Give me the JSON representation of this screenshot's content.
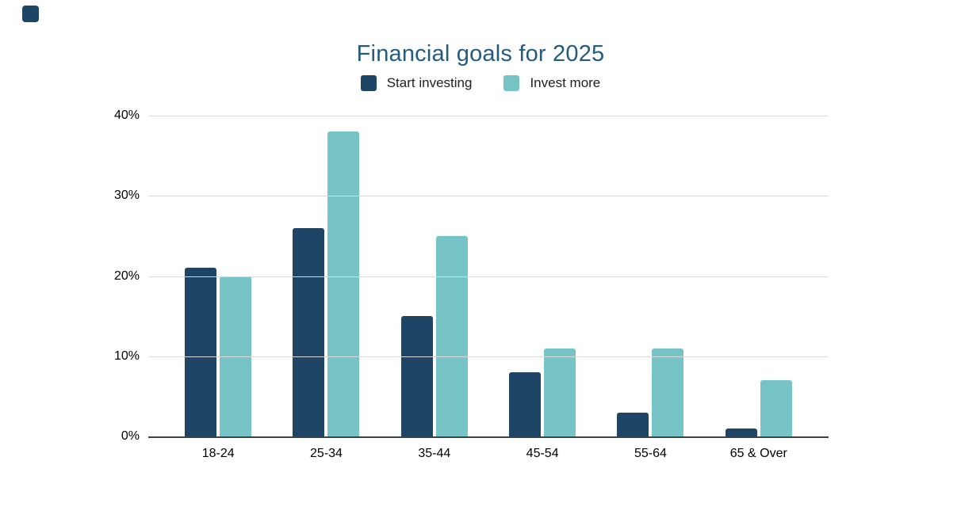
{
  "page": {
    "background": "#ffffff"
  },
  "corner_swatch": {
    "color": "#1E4565"
  },
  "chart_data": {
    "type": "bar",
    "title": "Financial goals for 2025",
    "title_color": "#235C7E",
    "categories": [
      "18-24",
      "25-34",
      "35-44",
      "45-54",
      "55-64",
      "65 & Over"
    ],
    "series": [
      {
        "name": "Start investing",
        "color": "#1E4565",
        "values": [
          21,
          26,
          15,
          8,
          3,
          1
        ]
      },
      {
        "name": "Invest more",
        "color": "#77C4C7",
        "values": [
          20,
          38,
          25,
          11,
          11,
          7
        ]
      }
    ],
    "xlabel": "",
    "ylabel": "",
    "ylim": [
      0,
      40
    ],
    "yticks": [
      {
        "value": 40,
        "label": "40%"
      },
      {
        "value": 30,
        "label": "30%"
      },
      {
        "value": 20,
        "label": "20%"
      },
      {
        "value": 10,
        "label": "10%"
      },
      {
        "value": 0,
        "label": "0%"
      }
    ],
    "grid": true,
    "gridline_color": "#D9D9D9",
    "axis_color": "#424242",
    "legend_position": "top"
  }
}
